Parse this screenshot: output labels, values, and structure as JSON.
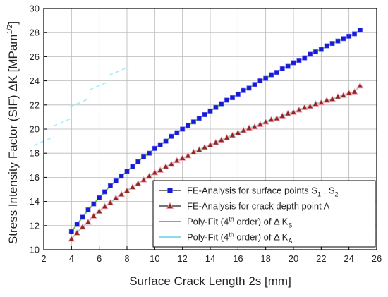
{
  "chart_data": {
    "type": "line",
    "xlabel": "Surface Crack Length 2s [mm]",
    "ylabel": "Stress Intensity Factor (SIF) ΔK [MPam",
    "ylabel_sup": "1/2",
    "ylabel_end": "]",
    "xlim": [
      2,
      26
    ],
    "ylim": [
      10,
      30
    ],
    "xticks": [
      2,
      4,
      6,
      8,
      10,
      12,
      14,
      16,
      18,
      20,
      22,
      24,
      26
    ],
    "yticks": [
      10,
      12,
      14,
      16,
      18,
      20,
      22,
      24,
      26,
      28,
      30
    ],
    "grid": true,
    "legend_position": "bottom-right",
    "series": [
      {
        "name": "FE-Analysis for surface points S1 , S2",
        "legend": {
          "base": "FE-Analysis for surface points S",
          "sub1": "1",
          "mid": " , S",
          "sub2": "2"
        },
        "marker": "square",
        "color": "#1a1ad0",
        "x": [
          4.0,
          4.4,
          4.8,
          5.2,
          5.6,
          6.0,
          6.4,
          6.8,
          7.2,
          7.6,
          8.0,
          8.4,
          8.8,
          9.2,
          9.6,
          10.0,
          10.4,
          10.8,
          11.2,
          11.6,
          12.0,
          12.4,
          12.8,
          13.2,
          13.6,
          14.0,
          14.4,
          14.8,
          15.2,
          15.6,
          16.0,
          16.4,
          16.8,
          17.2,
          17.6,
          18.0,
          18.4,
          18.8,
          19.2,
          19.6,
          20.0,
          20.4,
          20.8,
          21.2,
          21.6,
          22.0,
          22.4,
          22.8,
          23.2,
          23.6,
          24.0,
          24.4,
          24.8
        ],
        "y": [
          11.5,
          12.1,
          12.7,
          13.3,
          13.8,
          14.3,
          14.8,
          15.3,
          15.7,
          16.1,
          16.5,
          16.9,
          17.3,
          17.7,
          18.0,
          18.4,
          18.7,
          19.0,
          19.4,
          19.7,
          20.0,
          20.3,
          20.6,
          20.9,
          21.2,
          21.5,
          21.8,
          22.1,
          22.4,
          22.6,
          22.9,
          23.2,
          23.4,
          23.7,
          24.0,
          24.2,
          24.5,
          24.7,
          25.0,
          25.2,
          25.5,
          25.7,
          25.9,
          26.2,
          26.4,
          26.6,
          26.9,
          27.1,
          27.3,
          27.5,
          27.7,
          27.9,
          28.2
        ]
      },
      {
        "name": "FE-Analysis for crack depth point A",
        "legend": {
          "base": "FE-Analysis for crack depth point A"
        },
        "marker": "triangle",
        "color": "#8b2a1a",
        "x": [
          4.0,
          4.4,
          4.8,
          5.2,
          5.6,
          6.0,
          6.4,
          6.8,
          7.2,
          7.6,
          8.0,
          8.4,
          8.8,
          9.2,
          9.6,
          10.0,
          10.4,
          10.8,
          11.2,
          11.6,
          12.0,
          12.4,
          12.8,
          13.2,
          13.6,
          14.0,
          14.4,
          14.8,
          15.2,
          15.6,
          16.0,
          16.4,
          16.8,
          17.2,
          17.6,
          18.0,
          18.4,
          18.8,
          19.2,
          19.6,
          20.0,
          20.4,
          20.8,
          21.2,
          21.6,
          22.0,
          22.4,
          22.8,
          23.2,
          23.6,
          24.0,
          24.4,
          24.8
        ],
        "y": [
          10.9,
          11.4,
          11.9,
          12.3,
          12.8,
          13.2,
          13.6,
          13.9,
          14.3,
          14.6,
          14.9,
          15.2,
          15.5,
          15.8,
          16.1,
          16.4,
          16.6,
          16.9,
          17.1,
          17.4,
          17.6,
          17.8,
          18.1,
          18.3,
          18.5,
          18.7,
          18.9,
          19.1,
          19.3,
          19.5,
          19.7,
          19.9,
          20.1,
          20.2,
          20.4,
          20.6,
          20.8,
          20.9,
          21.1,
          21.3,
          21.4,
          21.6,
          21.8,
          21.9,
          22.1,
          22.2,
          22.4,
          22.5,
          22.7,
          22.8,
          23.0,
          23.1,
          23.6
        ]
      },
      {
        "name": "Poly-Fit (4th order) of Δ KS",
        "legend": {
          "base": "Poly-Fit (4",
          "sup": "th",
          "mid": " order) of Δ K",
          "sub2": "S"
        },
        "marker": "none",
        "color": "#5ad62a",
        "fit_of": 0
      },
      {
        "name": "Poly-Fit (4th order) of Δ KA",
        "legend": {
          "base": "Poly-Fit (4",
          "sup": "th",
          "mid": " order) of Δ K",
          "sub2": "A"
        },
        "marker": "none",
        "color": "#8ed8f0",
        "fit_of": 1
      }
    ]
  }
}
